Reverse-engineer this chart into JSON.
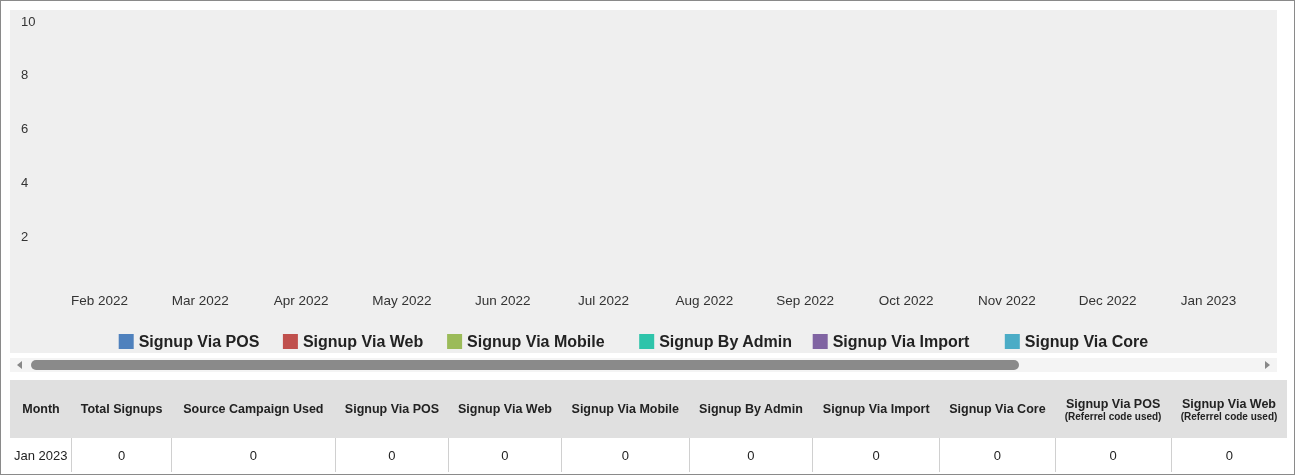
{
  "chart_data": {
    "type": "bar",
    "categories": [
      "Feb 2022",
      "Mar 2022",
      "Apr 2022",
      "May 2022",
      "Jun 2022",
      "Jul 2022",
      "Aug 2022",
      "Sep 2022",
      "Oct 2022",
      "Nov 2022",
      "Dec 2022",
      "Jan 2023"
    ],
    "series": [
      {
        "name": "Signup Via POS",
        "color": "#4f81bd",
        "values": [
          0,
          0,
          0,
          0,
          0,
          0,
          0,
          0,
          0,
          0,
          0,
          0
        ]
      },
      {
        "name": "Signup Via Web",
        "color": "#c0504d",
        "values": [
          0,
          0,
          0,
          0,
          0,
          0,
          0,
          0,
          0,
          0,
          0,
          0
        ]
      },
      {
        "name": "Signup Via Mobile",
        "color": "#9bbb59",
        "values": [
          0,
          0,
          0,
          0,
          0,
          0,
          0,
          0,
          0,
          0,
          0,
          0
        ]
      },
      {
        "name": "Signup By Admin",
        "color": "#2ec4aa",
        "values": [
          0,
          0,
          0,
          0,
          0,
          0,
          0,
          0,
          0,
          0,
          0,
          0
        ]
      },
      {
        "name": "Signup Via Import",
        "color": "#8064a2",
        "values": [
          0,
          0,
          0,
          0,
          0,
          0,
          0,
          0,
          0,
          0,
          0,
          0
        ]
      },
      {
        "name": "Signup Via Core",
        "color": "#4bacc6",
        "values": [
          0,
          0,
          0,
          0,
          0,
          0,
          0,
          0,
          0,
          0,
          0,
          0
        ]
      }
    ],
    "ylim": [
      0,
      10
    ],
    "yticks": [
      2,
      4,
      6,
      8,
      10
    ],
    "legend": "bottom",
    "annotations": [
      "Month",
      "Total Signups",
      "Source Campaign Used",
      "Signup Via POS",
      "Signup Via Web",
      "Signup Via Mobile",
      "Signup By Admin",
      "Signup Via Import",
      "Signup Via Core",
      "Signup Via POS\n(Referrel code used)",
      "Signup Via Web\n(Referrel code used)",
      "Jan 2023",
      "0",
      "0",
      "0",
      "0",
      "0",
      "0",
      "0",
      "0",
      "0",
      "0"
    ]
  }
}
